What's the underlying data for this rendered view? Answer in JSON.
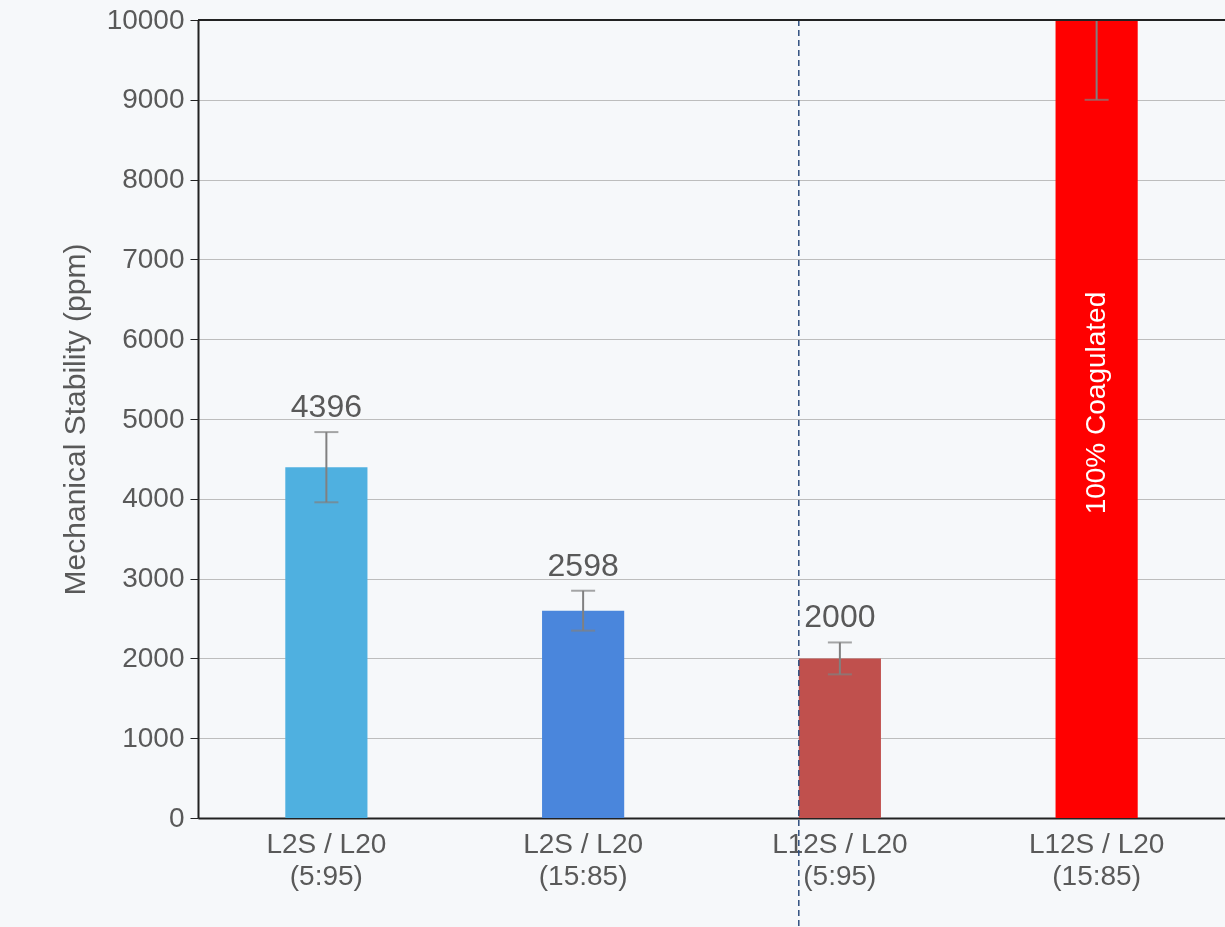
{
  "chart_data": {
    "type": "bar",
    "ylabel": "Mechanical Stability  (ppm)",
    "categories": [
      "L2S / L20\n(5:95)",
      "L2S / L20\n(15:85)",
      "L12S / L20\n(5:95)",
      "L12S / L20\n(15:85)"
    ],
    "values": [
      4396,
      2598,
      2000,
      10000
    ],
    "colors": [
      "#4fb0e0",
      "#4a86dc",
      "#c0504d",
      "#ff0000"
    ],
    "errors": [
      440,
      250,
      200,
      [
        9000,
        10000
      ]
    ],
    "value_labels": [
      "4396",
      "2598",
      "2000",
      null
    ],
    "annotations": [
      "100% Coagulated"
    ],
    "ref_lines": [
      {
        "axis": "x",
        "value": "L12S / L20\n(5:95)",
        "line_style": "dashed",
        "color": "#2f4f7f"
      }
    ],
    "ylim": [
      0,
      10000
    ],
    "yticks": [
      0,
      1000,
      2000,
      3000,
      4000,
      5000,
      6000,
      7000,
      8000,
      9000,
      10000
    ],
    "grid": "y"
  }
}
